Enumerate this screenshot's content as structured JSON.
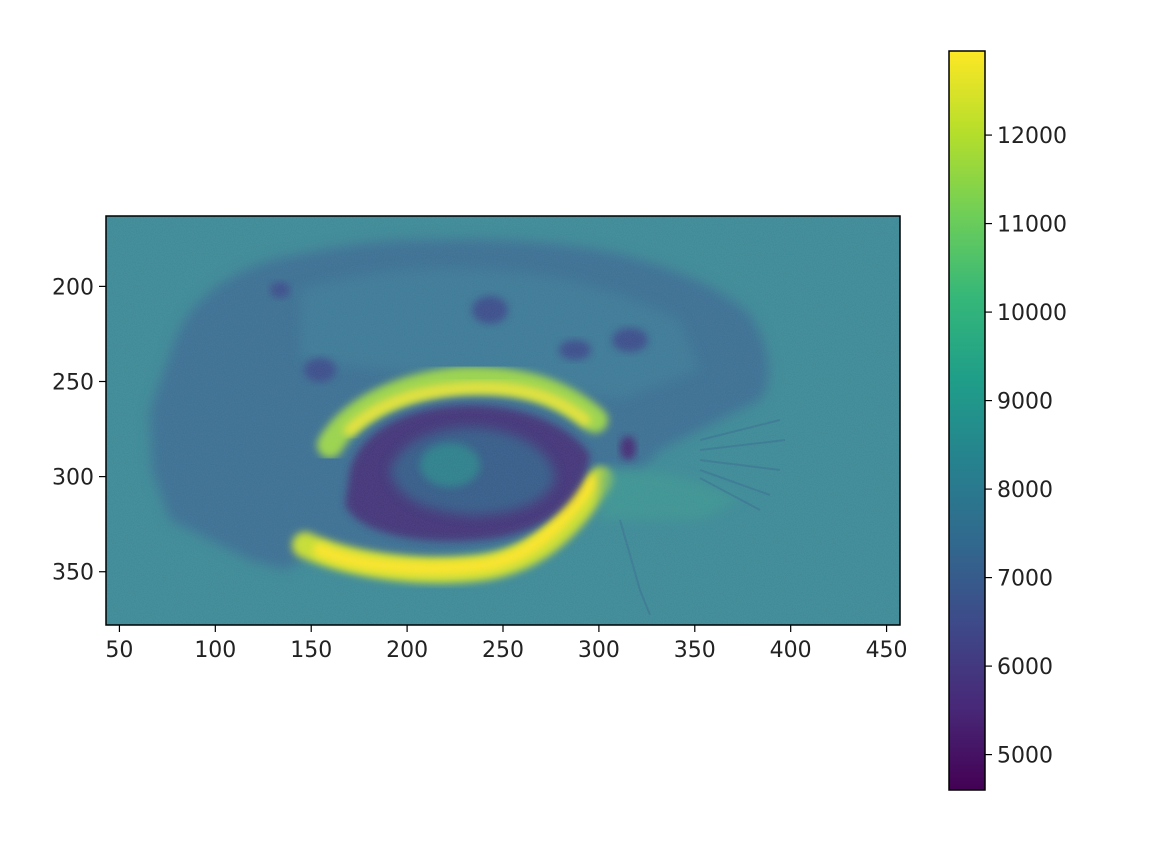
{
  "chart_data": {
    "type": "heatmap",
    "title": "",
    "xlabel": "",
    "ylabel": "",
    "xlim": [
      43,
      457
    ],
    "ylim": [
      378,
      163
    ],
    "y_inverted": true,
    "x_ticks": [
      50,
      100,
      150,
      200,
      250,
      300,
      350,
      400,
      450
    ],
    "y_ticks": [
      200,
      250,
      300,
      350
    ],
    "colormap": "viridis",
    "value_range": [
      4600,
      12950
    ],
    "background_value": 8200,
    "colorbar": {
      "position": "right",
      "ticks": [
        5000,
        6000,
        7000,
        8000,
        9000,
        10000,
        11000,
        12000
      ]
    },
    "colormap_stops": [
      "#440154",
      "#482878",
      "#3e4989",
      "#31688e",
      "#26828e",
      "#1f9e89",
      "#35b779",
      "#6ece58",
      "#b5de2b",
      "#fde725"
    ],
    "grid": false
  }
}
